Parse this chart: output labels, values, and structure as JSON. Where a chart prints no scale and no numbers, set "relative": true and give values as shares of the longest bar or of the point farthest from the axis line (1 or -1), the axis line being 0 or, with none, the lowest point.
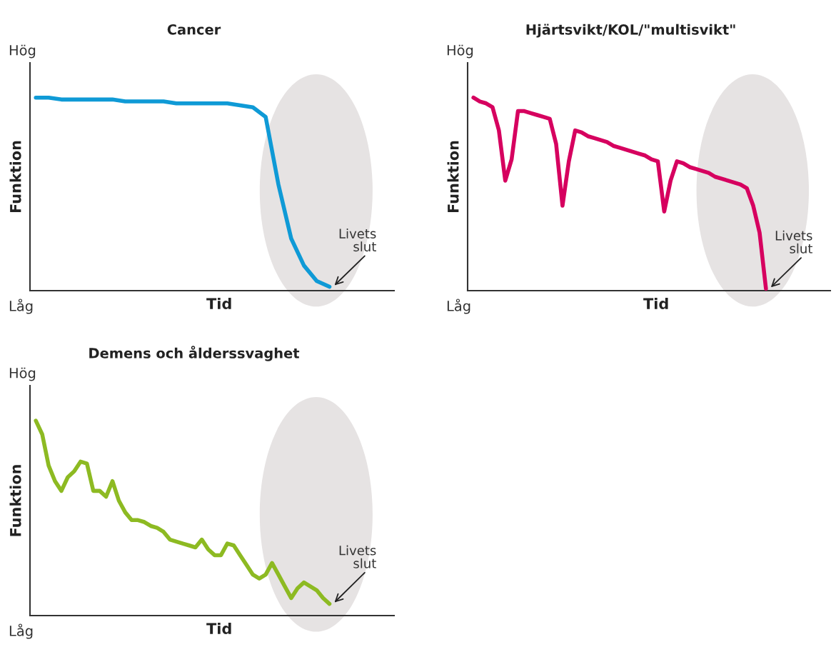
{
  "chart_data": [
    {
      "type": "line",
      "title": "Cancer",
      "xlabel": "Tid",
      "ylabel": "Funktion",
      "relative": true,
      "annotations": [
        "Hög",
        "Låg",
        "Livets slut"
      ],
      "categories": [
        null,
        null,
        null,
        null,
        null,
        null,
        null,
        null,
        null,
        null,
        null,
        null,
        null,
        null,
        null,
        null,
        null,
        null,
        null,
        null,
        null,
        null,
        null,
        null
      ],
      "series": [
        {
          "color": "#0f9ad6",
          "values": [
            1.0,
            1.0,
            0.99,
            0.99,
            0.99,
            0.99,
            0.99,
            0.98,
            0.98,
            0.98,
            0.98,
            0.97,
            0.97,
            0.97,
            0.97,
            0.97,
            0.96,
            0.95,
            0.9,
            0.55,
            0.27,
            0.13,
            0.05,
            0.02
          ]
        }
      ]
    },
    {
      "type": "line",
      "title": "Hjärtsvikt/KOL/\"multisvikt\"",
      "xlabel": "Tid",
      "ylabel": "Funktion",
      "relative": true,
      "annotations": [
        "Hög",
        "Låg",
        "Livets slut"
      ],
      "categories": [
        null,
        null,
        null,
        null,
        null,
        null,
        null,
        null,
        null,
        null,
        null,
        null,
        null,
        null,
        null,
        null,
        null,
        null,
        null,
        null,
        null,
        null,
        null,
        null,
        null,
        null,
        null,
        null,
        null,
        null,
        null,
        null,
        null,
        null,
        null,
        null,
        null,
        null,
        null,
        null,
        null,
        null,
        null,
        null,
        null,
        null,
        null
      ],
      "series": [
        {
          "color": "#d6005f",
          "values": [
            1.0,
            0.98,
            0.97,
            0.95,
            0.83,
            0.57,
            0.68,
            0.93,
            0.93,
            0.92,
            0.91,
            0.9,
            0.89,
            0.76,
            0.44,
            0.67,
            0.83,
            0.82,
            0.8,
            0.79,
            0.78,
            0.77,
            0.75,
            0.74,
            0.73,
            0.72,
            0.71,
            0.7,
            0.68,
            0.67,
            0.41,
            0.57,
            0.67,
            0.66,
            0.64,
            0.63,
            0.62,
            0.61,
            0.59,
            0.58,
            0.57,
            0.56,
            0.55,
            0.53,
            0.44,
            0.3,
            0.01
          ]
        }
      ]
    },
    {
      "type": "line",
      "title": "Demens och ålderssvaghet",
      "xlabel": "Tid",
      "ylabel": "Funktion",
      "relative": true,
      "annotations": [
        "Hög",
        "Låg",
        "Livets slut"
      ],
      "categories": [
        null,
        null,
        null,
        null,
        null,
        null,
        null,
        null,
        null,
        null,
        null,
        null,
        null,
        null,
        null,
        null,
        null,
        null,
        null,
        null,
        null,
        null,
        null,
        null,
        null,
        null,
        null,
        null,
        null,
        null,
        null,
        null,
        null,
        null,
        null,
        null,
        null,
        null,
        null,
        null,
        null,
        null,
        null,
        null,
        null,
        null,
        null
      ],
      "series": [
        {
          "color": "#8dba22",
          "values": [
            1.0,
            0.93,
            0.77,
            0.69,
            0.64,
            0.71,
            0.74,
            0.79,
            0.78,
            0.64,
            0.64,
            0.61,
            0.69,
            0.59,
            0.53,
            0.49,
            0.49,
            0.48,
            0.46,
            0.45,
            0.43,
            0.39,
            0.38,
            0.37,
            0.36,
            0.35,
            0.39,
            0.34,
            0.31,
            0.31,
            0.37,
            0.36,
            0.31,
            0.26,
            0.21,
            0.19,
            0.21,
            0.27,
            0.21,
            0.15,
            0.09,
            0.14,
            0.17,
            0.15,
            0.13,
            0.09,
            0.06
          ]
        }
      ]
    }
  ]
}
